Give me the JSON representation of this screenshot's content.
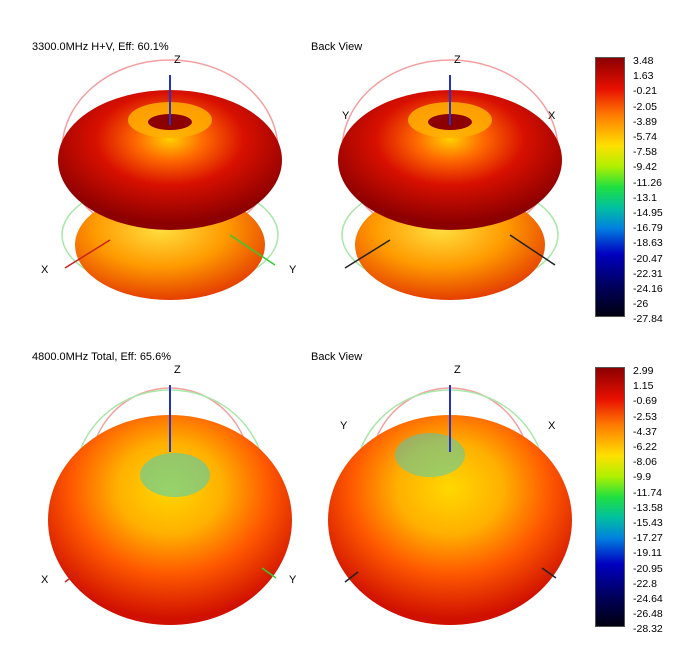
{
  "plots": [
    {
      "title": "3300.0MHz H+V, Eff: 60.1%",
      "view_title": "Back View",
      "scale": [
        "3.48",
        "1.63",
        "-0.21",
        "-2.05",
        "-3.89",
        "-5.74",
        "-7.58",
        "-9.42",
        "-11.26",
        "-13.1",
        "-14.95",
        "-16.79",
        "-18.63",
        "-20.47",
        "-22.31",
        "-24.16",
        "-26",
        "-27.84"
      ]
    },
    {
      "title": "4800.0MHz Total, Eff: 65.6%",
      "view_title": "Back View",
      "scale": [
        "2.99",
        "1.15",
        "-0.69",
        "-2.53",
        "-4.37",
        "-6.22",
        "-8.06",
        "-9.9",
        "-11.74",
        "-13.58",
        "-15.43",
        "-17.27",
        "-19.11",
        "-20.95",
        "-22.8",
        "-24.64",
        "-26.48",
        "-28.32"
      ]
    }
  ],
  "axes": {
    "z": "Z",
    "x": "X",
    "y": "Y"
  },
  "colors": {
    "z_axis": "#2233cc",
    "x_axis": "#cc2222",
    "y_axis": "#33cc33",
    "dark_red": "#8c0000",
    "red": "#e81000",
    "orange": "#ff7a00",
    "yellow": "#ffe000",
    "cyan": "#40d0c0"
  }
}
